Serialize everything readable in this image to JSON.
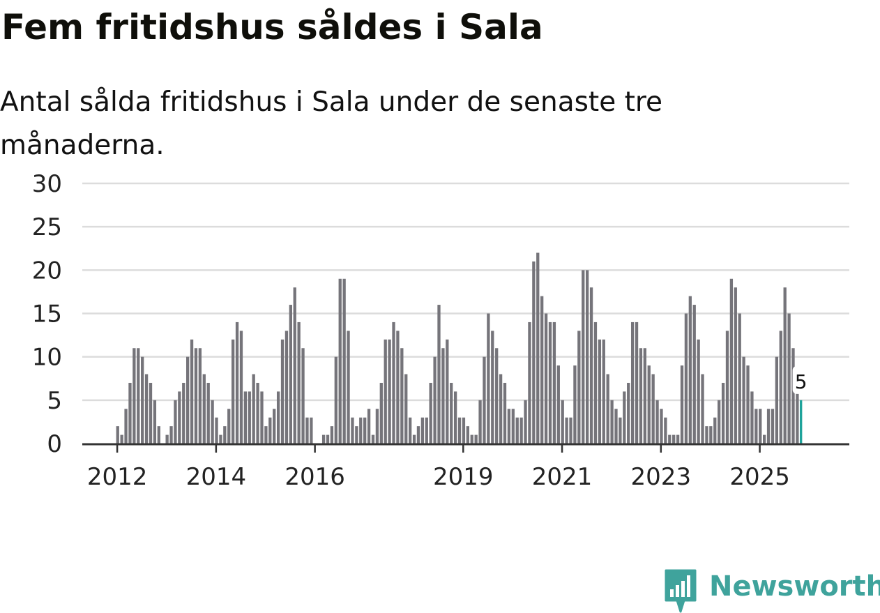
{
  "title": "Fem fritidshus såldes i Sala",
  "subtitle": "Antal sålda fritidshus i Sala under de senaste tre månaderna.",
  "brand": {
    "name": "Newsworthy",
    "logo_icon": "newsworthy-bar-chart-icon"
  },
  "colors": {
    "bar": "#75747a",
    "highlight": "#1fa39b",
    "grid": "#dcdcdc",
    "axis": "#333333",
    "brand": "#3fa39c"
  },
  "chart_data": {
    "type": "bar",
    "x_labels": [
      "2012",
      "2014",
      "2016",
      "2019",
      "2021",
      "2023",
      "2025"
    ],
    "highlight_label": "5",
    "ylim": [
      0,
      30
    ],
    "yticks": [
      0,
      5,
      10,
      15,
      20,
      25,
      30
    ],
    "grid": true,
    "series": [
      {
        "values": [
          2,
          1,
          4,
          7,
          11,
          11,
          10,
          8,
          7,
          5,
          2,
          0,
          1,
          2,
          5,
          6,
          7,
          10,
          12,
          11,
          11,
          8,
          7,
          5,
          3,
          1,
          2,
          4,
          12,
          14,
          13,
          6,
          6,
          8,
          7,
          6,
          2,
          3,
          4,
          6,
          12,
          13,
          16,
          18,
          14,
          11,
          3,
          3,
          0,
          0,
          1,
          1,
          2,
          10,
          19,
          19,
          13,
          3,
          2,
          3,
          3,
          4,
          1,
          4,
          7,
          12,
          12,
          14,
          13,
          11,
          8,
          3,
          1,
          2,
          3,
          3,
          7,
          10,
          16,
          11,
          12,
          7,
          6,
          3,
          3,
          2,
          1,
          1,
          5,
          10,
          15,
          13,
          11,
          8,
          7,
          4,
          4,
          3,
          3,
          5,
          14,
          21,
          22,
          17,
          15,
          14,
          14,
          9,
          5,
          3,
          3,
          9,
          13,
          20,
          20,
          18,
          14,
          12,
          12,
          8,
          5,
          4,
          3,
          6,
          7,
          14,
          14,
          11,
          11,
          9,
          8,
          5,
          4,
          3,
          1,
          1,
          1,
          9,
          15,
          17,
          16,
          12,
          8,
          2,
          2,
          3,
          5,
          7,
          13,
          19,
          18,
          15,
          10,
          9,
          6,
          4,
          4,
          1,
          4,
          4,
          10,
          13,
          18,
          15,
          11,
          6,
          5
        ]
      }
    ]
  }
}
